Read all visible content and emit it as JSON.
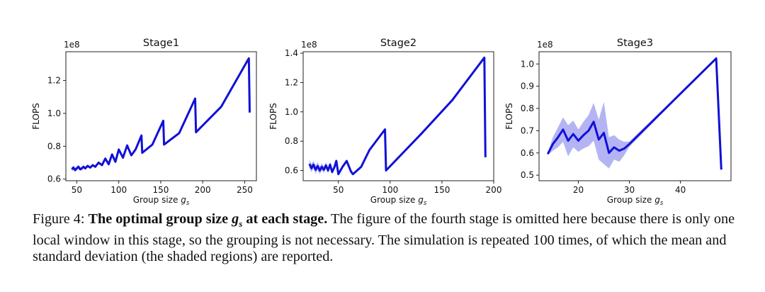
{
  "chart_data": [
    {
      "type": "line",
      "title": "Stage1",
      "xlabel": "Group size g_s",
      "xlabel_main": "Group size ",
      "xlabel_var": "g",
      "xlabel_sub": "s",
      "ylabel": "FLOPS",
      "offset_text": "1e8",
      "xlim": [
        37,
        264
      ],
      "ylim": [
        0.59,
        1.375
      ],
      "xticks": [
        50,
        100,
        150,
        200,
        250
      ],
      "xtick_labels": [
        "50",
        "100",
        "150",
        "200",
        "250"
      ],
      "yticks": [
        0.6,
        0.8,
        1.0,
        1.2
      ],
      "ytick_labels": [
        "0.6",
        "0.8",
        "1.0",
        "1.2"
      ],
      "grid": false,
      "series": [
        {
          "color": "#1010d8",
          "shade_color": "#9b9bf0",
          "x": [
            44,
            46,
            48,
            50,
            52,
            54,
            56,
            58,
            60,
            63,
            66,
            69,
            72,
            76,
            80,
            84,
            88,
            92,
            96,
            100,
            105,
            110,
            115,
            120,
            127,
            128,
            140,
            153,
            154,
            172,
            191,
            192,
            222,
            255,
            256
          ],
          "y": [
            0.66,
            0.67,
            0.655,
            0.665,
            0.675,
            0.66,
            0.665,
            0.675,
            0.665,
            0.68,
            0.67,
            0.685,
            0.675,
            0.7,
            0.685,
            0.725,
            0.69,
            0.75,
            0.705,
            0.78,
            0.73,
            0.805,
            0.745,
            0.78,
            0.865,
            0.76,
            0.81,
            0.955,
            0.81,
            0.88,
            1.09,
            0.885,
            1.04,
            1.335,
            1.005
          ],
          "std": [
            0.012,
            0.014,
            0.012,
            0.013,
            0.012,
            0.011,
            0.011,
            0.01,
            0.01,
            0.009,
            0.008,
            0.008,
            0.007,
            0.006,
            0.006,
            0.005,
            0.005,
            0.004,
            0.004,
            0.003,
            0.003,
            0.002,
            0.002,
            0.002,
            0.001,
            0.001,
            0.001,
            0,
            0,
            0,
            0,
            0,
            0,
            0,
            0
          ]
        }
      ]
    },
    {
      "type": "line",
      "title": "Stage2",
      "xlabel": "Group size g_s",
      "xlabel_main": "Group size ",
      "xlabel_var": "g",
      "xlabel_sub": "s",
      "ylabel": "FLOPS",
      "offset_text": "1e8",
      "xlim": [
        16,
        200
      ],
      "ylim": [
        0.53,
        1.41
      ],
      "xticks": [
        50,
        100,
        150,
        200
      ],
      "xtick_labels": [
        "50",
        "100",
        "150",
        "200"
      ],
      "yticks": [
        0.6,
        0.8,
        1.0,
        1.2,
        1.4
      ],
      "ytick_labels": [
        "0.6",
        "0.8",
        "1.0",
        "1.2",
        "1.4"
      ],
      "grid": false,
      "series": [
        {
          "color": "#1010d8",
          "shade_color": "#9b9bf0",
          "x": [
            22,
            24,
            26,
            28,
            30,
            32,
            34,
            36,
            38,
            40,
            42,
            44,
            46,
            48,
            50,
            54,
            58,
            62,
            64,
            72,
            80,
            95,
            96,
            130,
            160,
            191,
            192
          ],
          "y": [
            0.645,
            0.615,
            0.64,
            0.605,
            0.63,
            0.6,
            0.625,
            0.605,
            0.635,
            0.6,
            0.64,
            0.59,
            0.62,
            0.665,
            0.575,
            0.625,
            0.665,
            0.595,
            0.575,
            0.625,
            0.74,
            0.88,
            0.6,
            0.85,
            1.08,
            1.37,
            0.69
          ],
          "std": [
            0.025,
            0.028,
            0.026,
            0.028,
            0.027,
            0.025,
            0.025,
            0.022,
            0.022,
            0.02,
            0.02,
            0.018,
            0.016,
            0.014,
            0.012,
            0.01,
            0.008,
            0.005,
            0.004,
            0.003,
            0,
            0,
            0,
            0,
            0,
            0,
            0
          ]
        }
      ]
    },
    {
      "type": "line",
      "title": "Stage3",
      "xlabel": "Group size g_s",
      "xlabel_main": "Group size ",
      "xlabel_var": "g",
      "xlabel_sub": "s",
      "ylabel": "FLOPS",
      "offset_text": "1e8",
      "xlim": [
        12.3,
        49.9
      ],
      "ylim": [
        0.475,
        1.055
      ],
      "xticks": [
        20,
        30,
        40
      ],
      "xtick_labels": [
        "20",
        "30",
        "40"
      ],
      "yticks": [
        0.5,
        0.6,
        0.7,
        0.8,
        0.9,
        1.0
      ],
      "ytick_labels": [
        "0.5",
        "0.6",
        "0.7",
        "0.8",
        "0.9",
        "1.0"
      ],
      "grid": false,
      "series": [
        {
          "color": "#1010d8",
          "shade_color": "#9b9bf0",
          "x": [
            14,
            15,
            16,
            17,
            18,
            19,
            20,
            21,
            22,
            23,
            24,
            25,
            26,
            27,
            28,
            29,
            30,
            47,
            48
          ],
          "y": [
            0.595,
            0.64,
            0.67,
            0.705,
            0.655,
            0.685,
            0.655,
            0.68,
            0.7,
            0.74,
            0.66,
            0.69,
            0.6,
            0.625,
            0.61,
            0.62,
            0.64,
            1.025,
            0.525
          ],
          "std": [
            0.005,
            0.03,
            0.045,
            0.055,
            0.07,
            0.06,
            0.05,
            0.06,
            0.07,
            0.085,
            0.09,
            0.14,
            0.07,
            0.055,
            0.05,
            0.03,
            0.012,
            0,
            0
          ]
        }
      ]
    }
  ],
  "caption": {
    "label": "Figure 4:",
    "bold_lead": "The optimal group size",
    "var": "g",
    "sub": "s",
    "bold_tail": "at each stage.",
    "text": "The figure of the fourth stage is omitted here because there is only one local window in this stage, so the grouping is not necessary. The simulation is repeated 100 times, of which the mean and standard deviation (the shaded regions) are reported."
  }
}
